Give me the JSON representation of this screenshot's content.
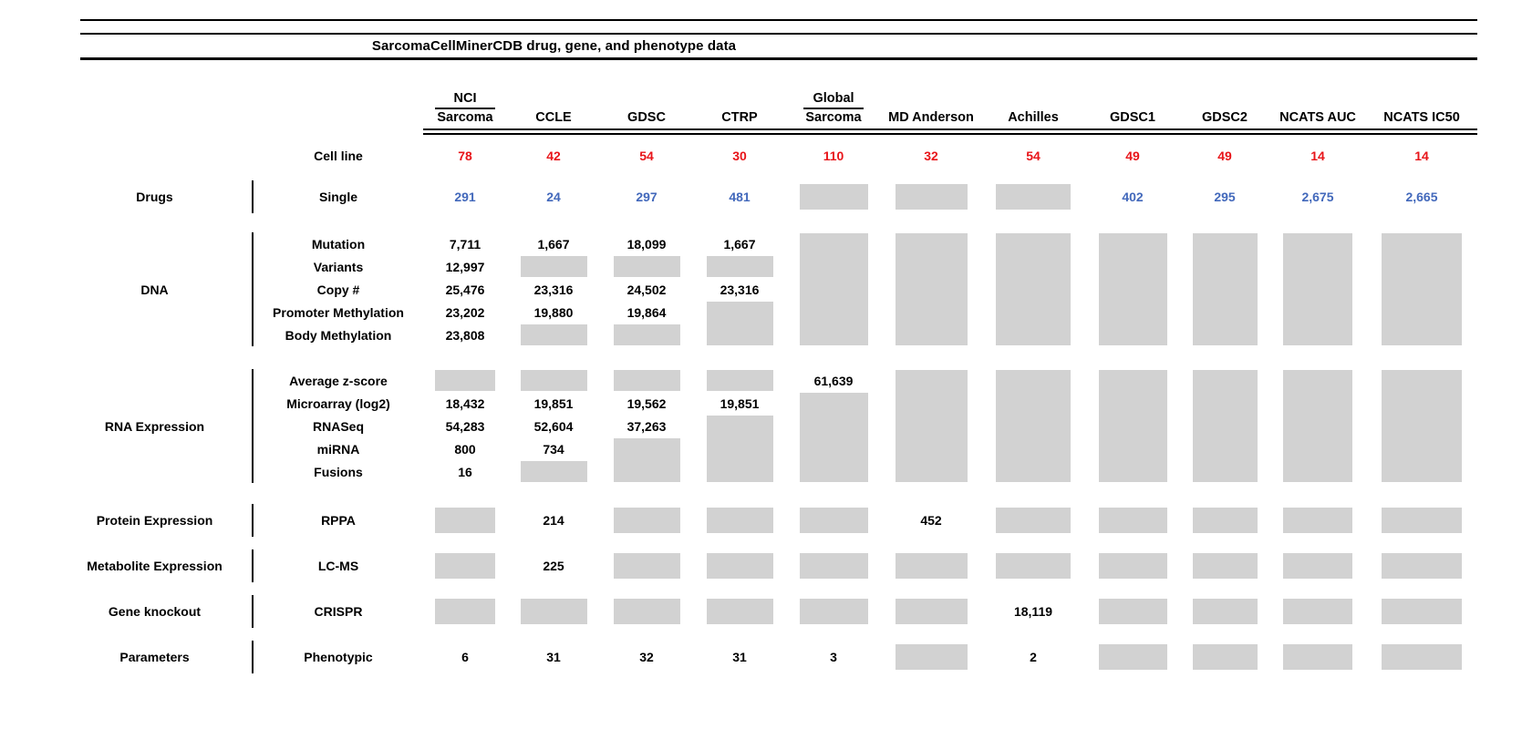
{
  "chart_data": {
    "type": "table",
    "title": "SarcomaCellMinerCDB drug, gene, and phenotype data",
    "cell_encoding": "'#' = gray no-data box; '#N' = gray no-data box spanning N rows; '' = covered by a spanning gray box above",
    "columns": [
      {
        "top": "NCI",
        "bottom": "Sarcoma"
      },
      {
        "bottom": "CCLE"
      },
      {
        "bottom": "GDSC"
      },
      {
        "bottom": "CTRP"
      },
      {
        "top": "Global",
        "bottom": "Sarcoma"
      },
      {
        "bottom": "MD Anderson"
      },
      {
        "bottom": "Achilles"
      },
      {
        "bottom": "GDSC1"
      },
      {
        "bottom": "GDSC2"
      },
      {
        "bottom": "NCATS AUC"
      },
      {
        "bottom": "NCATS IC50"
      }
    ],
    "cell_line": {
      "label": "Cell line",
      "values": [
        "78",
        "42",
        "54",
        "30",
        "110",
        "32",
        "54",
        "49",
        "49",
        "14",
        "14"
      ]
    },
    "sections": [
      {
        "group": "Drugs",
        "value_color": "blue",
        "rows": [
          {
            "label": "Single",
            "cells": [
              "291",
              "24",
              "297",
              "481",
              "#",
              "#",
              "#",
              "402",
              "295",
              "2,675",
              "2,665"
            ]
          }
        ]
      },
      {
        "group": "DNA",
        "rows": [
          {
            "label": "Mutation",
            "cells": [
              "7,711",
              "1,667",
              "18,099",
              "1,667",
              "#5",
              "#5",
              "#5",
              "#5",
              "#5",
              "#5",
              "#5"
            ]
          },
          {
            "label": "Variants",
            "cells": [
              "12,997",
              "#",
              "#",
              "#",
              "",
              "",
              "",
              "",
              "",
              "",
              ""
            ]
          },
          {
            "label": "Copy #",
            "cells": [
              "25,476",
              "23,316",
              "24,502",
              "23,316",
              "",
              "",
              "",
              "",
              "",
              "",
              ""
            ]
          },
          {
            "label": "Promoter Methylation",
            "cells": [
              "23,202",
              "19,880",
              "19,864",
              "#2",
              "",
              "",
              "",
              "",
              "",
              "",
              ""
            ]
          },
          {
            "label": "Body Methylation",
            "cells": [
              "23,808",
              "#",
              "#",
              "",
              "",
              "",
              "",
              "",
              "",
              "",
              ""
            ]
          }
        ]
      },
      {
        "group": "RNA Expression",
        "rows": [
          {
            "label": "Average z-score",
            "cells": [
              "#",
              "#",
              "#",
              "#",
              "61,639",
              "#5",
              "#5",
              "#5",
              "#5",
              "#5",
              "#5"
            ]
          },
          {
            "label": "Microarray (log2)",
            "cells": [
              "18,432",
              "19,851",
              "19,562",
              "19,851",
              "#4",
              "",
              "",
              "",
              "",
              "",
              ""
            ]
          },
          {
            "label": "RNASeq",
            "cells": [
              "54,283",
              "52,604",
              "37,263",
              "#3",
              "",
              "",
              "",
              "",
              "",
              "",
              ""
            ]
          },
          {
            "label": "miRNA",
            "cells": [
              "800",
              "734",
              "#2",
              "",
              "",
              "",
              "",
              "",
              "",
              "",
              ""
            ]
          },
          {
            "label": "Fusions",
            "cells": [
              "16",
              "#",
              "",
              "",
              "",
              "",
              "",
              "",
              "",
              "",
              ""
            ]
          }
        ]
      },
      {
        "group": "Protein Expression",
        "rows": [
          {
            "label": "RPPA",
            "cells": [
              "#",
              "214",
              "#",
              "#",
              "#",
              "452",
              "#",
              "#",
              "#",
              "#",
              "#"
            ]
          }
        ]
      },
      {
        "group": "Metabolite Expression",
        "rows": [
          {
            "label": "LC-MS",
            "cells": [
              "#",
              "225",
              "#",
              "#",
              "#",
              "#",
              "#",
              "#",
              "#",
              "#",
              "#"
            ]
          }
        ]
      },
      {
        "group": "Gene knockout",
        "rows": [
          {
            "label": "CRISPR",
            "cells": [
              "#",
              "#",
              "#",
              "#",
              "#",
              "#",
              "18,119",
              "#",
              "#",
              "#",
              "#"
            ]
          }
        ]
      },
      {
        "group": "Parameters",
        "rows": [
          {
            "label": "Phenotypic",
            "cells": [
              "6",
              "31",
              "32",
              "31",
              "3",
              "#",
              "2",
              "#",
              "#",
              "#",
              "#"
            ]
          }
        ]
      }
    ],
    "colors": {
      "cell_line_red": "#e81419",
      "drug_blue": "#4268bb",
      "no_data_gray": "#d2d2d2"
    }
  }
}
